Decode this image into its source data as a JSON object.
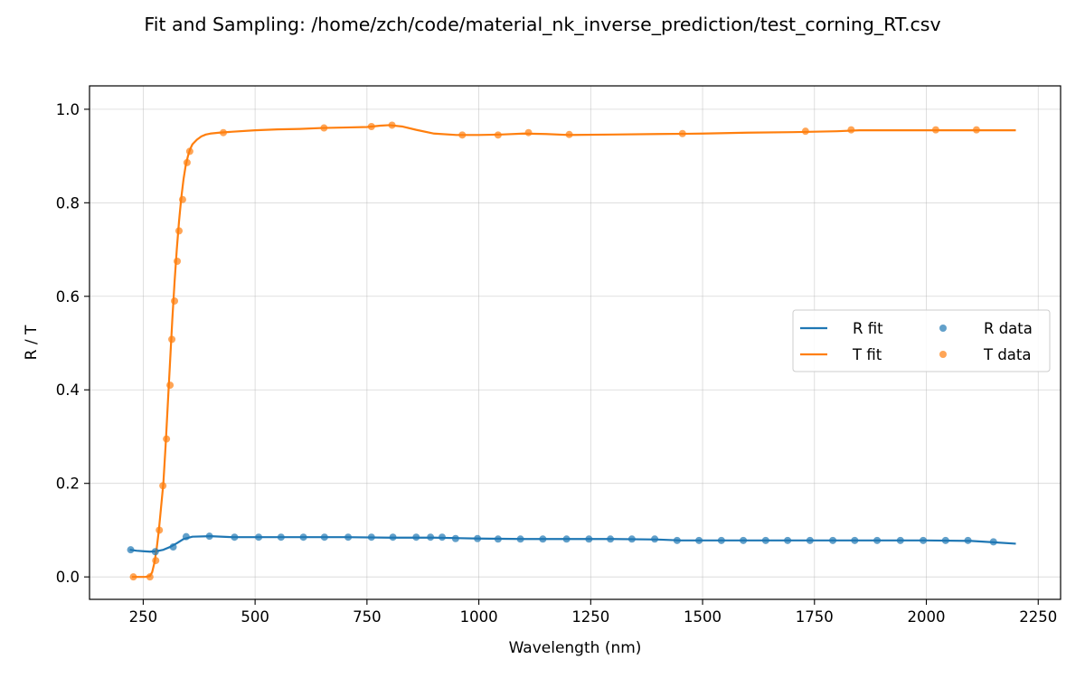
{
  "chart_data": {
    "type": "line",
    "title": "Fit and Sampling: /home/zch/code/material_nk_inverse_prediction/test_corning_RT.csv",
    "xlabel": "Wavelength (nm)",
    "ylabel": "R / T",
    "xlim": [
      130,
      2300
    ],
    "ylim": [
      -0.048,
      1.05
    ],
    "xticks": [
      250,
      500,
      750,
      1000,
      1250,
      1500,
      1750,
      2000,
      2250
    ],
    "yticks": [
      0.0,
      0.2,
      0.4,
      0.6,
      0.8,
      1.0
    ],
    "grid": true,
    "legend": {
      "position": "center-right",
      "columns": 2
    },
    "colors": {
      "R": "#1f77b4",
      "T": "#ff7f0e"
    },
    "series": [
      {
        "name": "R fit",
        "kind": "line",
        "color": "#1f77b4",
        "x": [
          220,
          235,
          250,
          265,
          280,
          295,
          310,
          325,
          340,
          360,
          400,
          450,
          500,
          600,
          700,
          800,
          900,
          1000,
          1100,
          1200,
          1300,
          1400,
          1450,
          1500,
          1600,
          1700,
          1800,
          1900,
          2000,
          2100,
          2150,
          2200
        ],
        "y": [
          0.058,
          0.056,
          0.055,
          0.054,
          0.055,
          0.058,
          0.064,
          0.072,
          0.081,
          0.086,
          0.087,
          0.085,
          0.085,
          0.085,
          0.085,
          0.084,
          0.084,
          0.082,
          0.081,
          0.081,
          0.081,
          0.08,
          0.078,
          0.078,
          0.078,
          0.078,
          0.078,
          0.078,
          0.078,
          0.077,
          0.074,
          0.071
        ]
      },
      {
        "name": "T fit",
        "kind": "line",
        "color": "#ff7f0e",
        "x": [
          225,
          240,
          255,
          265,
          270,
          275,
          280,
          285,
          290,
          295,
          300,
          305,
          310,
          315,
          320,
          325,
          330,
          335,
          340,
          345,
          350,
          355,
          360,
          370,
          380,
          390,
          400,
          420,
          450,
          500,
          550,
          600,
          650,
          700,
          750,
          780,
          800,
          830,
          860,
          900,
          950,
          1000,
          1050,
          1100,
          1150,
          1200,
          1300,
          1400,
          1500,
          1600,
          1700,
          1750,
          1800,
          1850,
          1900,
          2000,
          2100,
          2200
        ],
        "y": [
          0.0,
          0.0,
          0.0,
          0.002,
          0.01,
          0.03,
          0.06,
          0.1,
          0.15,
          0.2,
          0.28,
          0.37,
          0.46,
          0.55,
          0.63,
          0.7,
          0.76,
          0.81,
          0.85,
          0.88,
          0.9,
          0.915,
          0.925,
          0.935,
          0.942,
          0.946,
          0.948,
          0.95,
          0.952,
          0.955,
          0.957,
          0.958,
          0.96,
          0.961,
          0.962,
          0.965,
          0.966,
          0.963,
          0.956,
          0.948,
          0.945,
          0.945,
          0.946,
          0.948,
          0.947,
          0.945,
          0.946,
          0.947,
          0.948,
          0.95,
          0.951,
          0.952,
          0.953,
          0.955,
          0.955,
          0.955,
          0.955,
          0.955
        ]
      },
      {
        "name": "R data",
        "kind": "scatter",
        "color": "#1f77b4",
        "x": [
          222,
          277,
          317,
          346,
          398,
          454,
          508,
          558,
          608,
          655,
          708,
          760,
          808,
          860,
          892,
          918,
          948,
          997,
          1043,
          1093,
          1143,
          1196,
          1246,
          1294,
          1342,
          1393,
          1443,
          1492,
          1542,
          1591,
          1641,
          1690,
          1740,
          1791,
          1840,
          1890,
          1942,
          1993,
          2043,
          2093,
          2150
        ],
        "y": [
          0.058,
          0.054,
          0.064,
          0.086,
          0.087,
          0.085,
          0.085,
          0.085,
          0.085,
          0.085,
          0.085,
          0.085,
          0.085,
          0.085,
          0.085,
          0.085,
          0.082,
          0.082,
          0.081,
          0.081,
          0.081,
          0.081,
          0.081,
          0.081,
          0.081,
          0.081,
          0.078,
          0.078,
          0.078,
          0.078,
          0.078,
          0.078,
          0.078,
          0.078,
          0.078,
          0.078,
          0.078,
          0.078,
          0.078,
          0.078,
          0.075
        ]
      },
      {
        "name": "T data",
        "kind": "scatter",
        "color": "#ff7f0e",
        "x": [
          228,
          265,
          278,
          286,
          294,
          302,
          310,
          314,
          320,
          326,
          330,
          338,
          348,
          354,
          429,
          654,
          760,
          806,
          963,
          1043,
          1111,
          1202,
          1455,
          1730,
          1832,
          2021,
          2112
        ],
        "y": [
          0.0,
          0.0,
          0.035,
          0.1,
          0.195,
          0.295,
          0.41,
          0.508,
          0.59,
          0.675,
          0.74,
          0.807,
          0.886,
          0.91,
          0.95,
          0.96,
          0.963,
          0.966,
          0.945,
          0.945,
          0.95,
          0.946,
          0.948,
          0.953,
          0.956,
          0.956,
          0.956
        ]
      }
    ]
  }
}
